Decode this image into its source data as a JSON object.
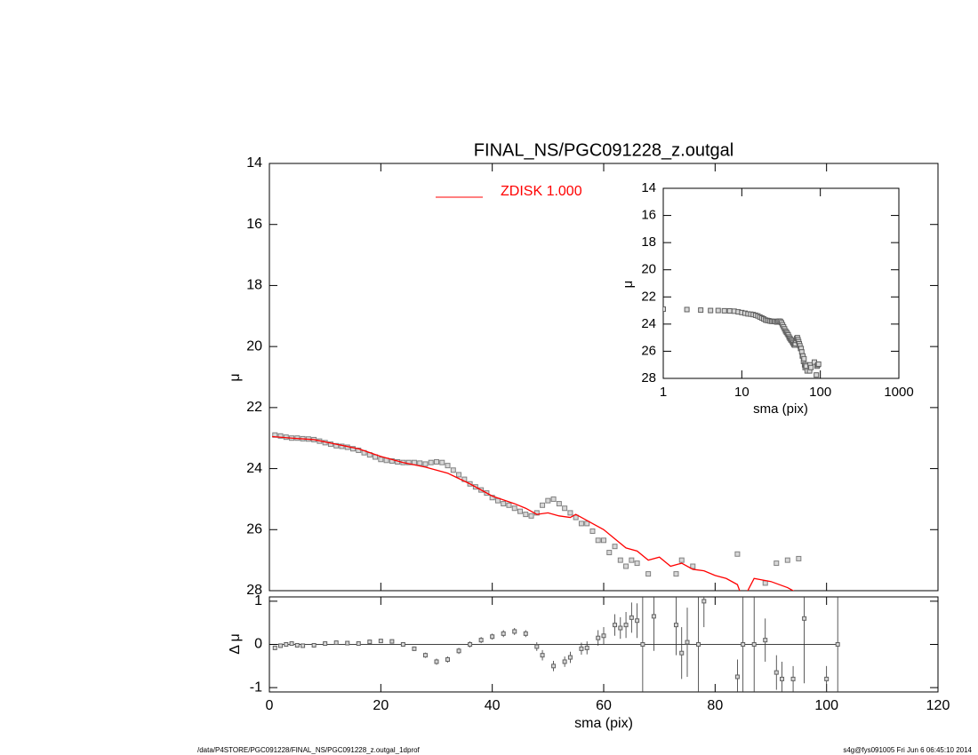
{
  "chart_data": [
    {
      "type": "profile",
      "title": "FINAL_NS/PGC091228_z.outgal",
      "ylabel": "μ",
      "xlim": [
        0,
        120
      ],
      "xticks": [
        0,
        20,
        40,
        60,
        80,
        100,
        120
      ],
      "ylim": [
        14,
        28
      ],
      "yticks": [
        14,
        16,
        18,
        20,
        22,
        24,
        26,
        28
      ],
      "y_inverted": true,
      "series": [
        {
          "style": "points",
          "color": "#808080",
          "x": [
            1,
            2,
            3,
            4,
            5,
            6,
            7,
            8,
            9,
            10,
            11,
            12,
            13,
            14,
            15,
            16,
            17,
            18,
            19,
            20,
            21,
            22,
            23,
            24,
            25,
            26,
            27,
            28,
            29,
            30,
            31,
            32,
            33,
            34,
            35,
            36,
            37,
            38,
            39,
            40,
            41,
            42,
            43,
            44,
            45,
            46,
            47,
            48,
            49,
            50,
            51,
            52,
            53,
            54,
            55,
            56,
            57,
            58,
            59,
            60,
            61,
            62,
            63,
            64,
            65,
            66,
            68,
            73,
            74,
            76,
            84,
            89,
            91,
            93,
            95
          ],
          "values": [
            22.9,
            22.93,
            22.97,
            23.0,
            23.0,
            23.02,
            23.03,
            23.05,
            23.1,
            23.15,
            23.2,
            23.25,
            23.27,
            23.3,
            23.35,
            23.4,
            23.48,
            23.55,
            23.62,
            23.7,
            23.73,
            23.75,
            23.78,
            23.8,
            23.8,
            23.8,
            23.82,
            23.85,
            23.8,
            23.78,
            23.8,
            23.9,
            24.05,
            24.2,
            24.35,
            24.5,
            24.6,
            24.7,
            24.8,
            24.95,
            25.05,
            25.15,
            25.2,
            25.3,
            25.4,
            25.5,
            25.55,
            25.45,
            25.2,
            25.05,
            25.0,
            25.15,
            25.3,
            25.45,
            25.6,
            25.8,
            25.8,
            26.05,
            26.35,
            26.35,
            26.75,
            26.55,
            27.0,
            27.2,
            27.0,
            27.1,
            27.45,
            27.45,
            27.0,
            27.2,
            26.8,
            27.75,
            27.1,
            27.0,
            26.95
          ]
        },
        {
          "style": "line",
          "name": "ZDISK  1.000",
          "color": "#ff0000",
          "x": [
            0.5,
            4,
            8,
            12,
            16,
            20,
            24,
            28,
            32,
            36,
            40,
            44,
            46,
            48,
            50,
            52,
            54,
            55,
            58,
            60,
            62,
            64,
            66,
            68,
            70,
            72,
            74,
            76,
            78,
            80,
            82,
            84,
            85,
            87,
            90,
            93,
            96
          ],
          "values": [
            22.95,
            23.0,
            23.05,
            23.2,
            23.35,
            23.6,
            23.8,
            23.95,
            24.15,
            24.5,
            24.9,
            25.15,
            25.3,
            25.5,
            25.45,
            25.55,
            25.6,
            25.5,
            25.8,
            26.0,
            26.3,
            26.6,
            26.7,
            27.0,
            26.9,
            27.2,
            27.1,
            27.3,
            27.35,
            27.5,
            27.6,
            27.8,
            28.3,
            27.6,
            27.7,
            27.9,
            28.2
          ]
        }
      ]
    },
    {
      "type": "errorbar",
      "ylabel": "Δ μ",
      "xlabel": "sma (pix)",
      "color": "#606060",
      "xlim": [
        0,
        120
      ],
      "xticks": [
        0,
        20,
        40,
        60,
        80,
        100,
        120
      ],
      "ylim": [
        -1.1,
        1.1
      ],
      "yticks": [
        -1,
        0,
        1
      ],
      "x": [
        1,
        2,
        3,
        4,
        5,
        6,
        8,
        10,
        12,
        14,
        16,
        18,
        20,
        22,
        24,
        26,
        28,
        30,
        32,
        34,
        36,
        38,
        40,
        42,
        44,
        46,
        48,
        49,
        51,
        53,
        54,
        56,
        57,
        59,
        60,
        62,
        63,
        64,
        65,
        66,
        67,
        69,
        73,
        74,
        75,
        77,
        78,
        84,
        85,
        87,
        89,
        91,
        92,
        94,
        96,
        100,
        102
      ],
      "values": [
        -0.08,
        -0.03,
        0.0,
        0.02,
        -0.02,
        -0.03,
        -0.02,
        0.02,
        0.04,
        0.03,
        0.02,
        0.06,
        0.08,
        0.07,
        0.0,
        -0.1,
        -0.25,
        -0.4,
        -0.35,
        -0.15,
        0.0,
        0.1,
        0.18,
        0.25,
        0.3,
        0.25,
        -0.05,
        -0.25,
        -0.5,
        -0.4,
        -0.3,
        -0.1,
        -0.08,
        0.15,
        0.2,
        0.45,
        0.38,
        0.45,
        0.62,
        0.55,
        0.0,
        0.65,
        0.45,
        -0.2,
        0.05,
        0.0,
        1.0,
        -0.75,
        0.0,
        0.0,
        0.1,
        -0.65,
        -0.8,
        -0.8,
        0.6,
        -0.8,
        0.0
      ],
      "errors": [
        0.02,
        0.02,
        0.02,
        0.02,
        0.02,
        0.02,
        0.02,
        0.03,
        0.03,
        0.03,
        0.03,
        0.04,
        0.04,
        0.04,
        0.04,
        0.05,
        0.06,
        0.07,
        0.07,
        0.07,
        0.07,
        0.07,
        0.07,
        0.08,
        0.08,
        0.08,
        0.1,
        0.12,
        0.12,
        0.12,
        0.13,
        0.14,
        0.15,
        0.18,
        0.2,
        0.25,
        0.25,
        0.3,
        0.35,
        0.4,
        2,
        0.8,
        0.7,
        0.6,
        0.8,
        2,
        0.6,
        0.4,
        2,
        2,
        0.5,
        0.4,
        0.4,
        0.3,
        1.5,
        0.3,
        2
      ]
    },
    {
      "type": "log_inset",
      "xlabel": "sma (pix)",
      "ylabel": "μ",
      "log_x": true,
      "xlim": [
        1,
        1000
      ],
      "xticks": [
        1,
        10,
        100,
        1000
      ],
      "ylim": [
        14,
        28
      ],
      "yticks": [
        14,
        16,
        18,
        20,
        22,
        24,
        26,
        28
      ],
      "y_inverted": true
    }
  ],
  "footer": {
    "left": "/data/P4STORE/PGC091228/FINAL_NS/PGC091228_z.outgal_1dprof",
    "right": "s4g@fys091005  Fri Jun  6 06:45:10 2014"
  }
}
